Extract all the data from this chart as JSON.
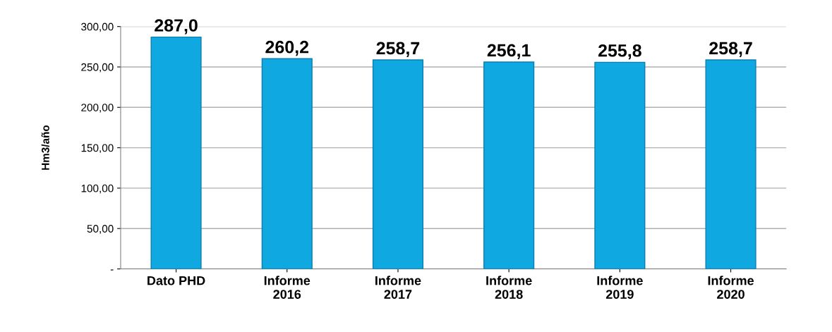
{
  "chart_data": {
    "type": "bar",
    "ylabel": "Hm3/año",
    "categories": [
      "Dato PHD",
      "Informe\n2016",
      "Informe\n2017",
      "Informe\n2018",
      "Informe\n2019",
      "Informe\n2020"
    ],
    "values": [
      287.0,
      260.2,
      258.7,
      256.1,
      255.8,
      258.7
    ],
    "value_labels": [
      "287,0",
      "260,2",
      "258,7",
      "256,1",
      "255,8",
      "258,7"
    ],
    "color": "#0fa8e0",
    "ylim": [
      0,
      300
    ],
    "yticks": [
      {
        "value": 0,
        "label": "-"
      },
      {
        "value": 50,
        "label": "50,00"
      },
      {
        "value": 100,
        "label": "100,00"
      },
      {
        "value": 150,
        "label": "150,00"
      },
      {
        "value": 200,
        "label": "200,00"
      },
      {
        "value": 250,
        "label": "250,00"
      },
      {
        "value": 300,
        "label": "300,00"
      }
    ],
    "grid": "y"
  }
}
